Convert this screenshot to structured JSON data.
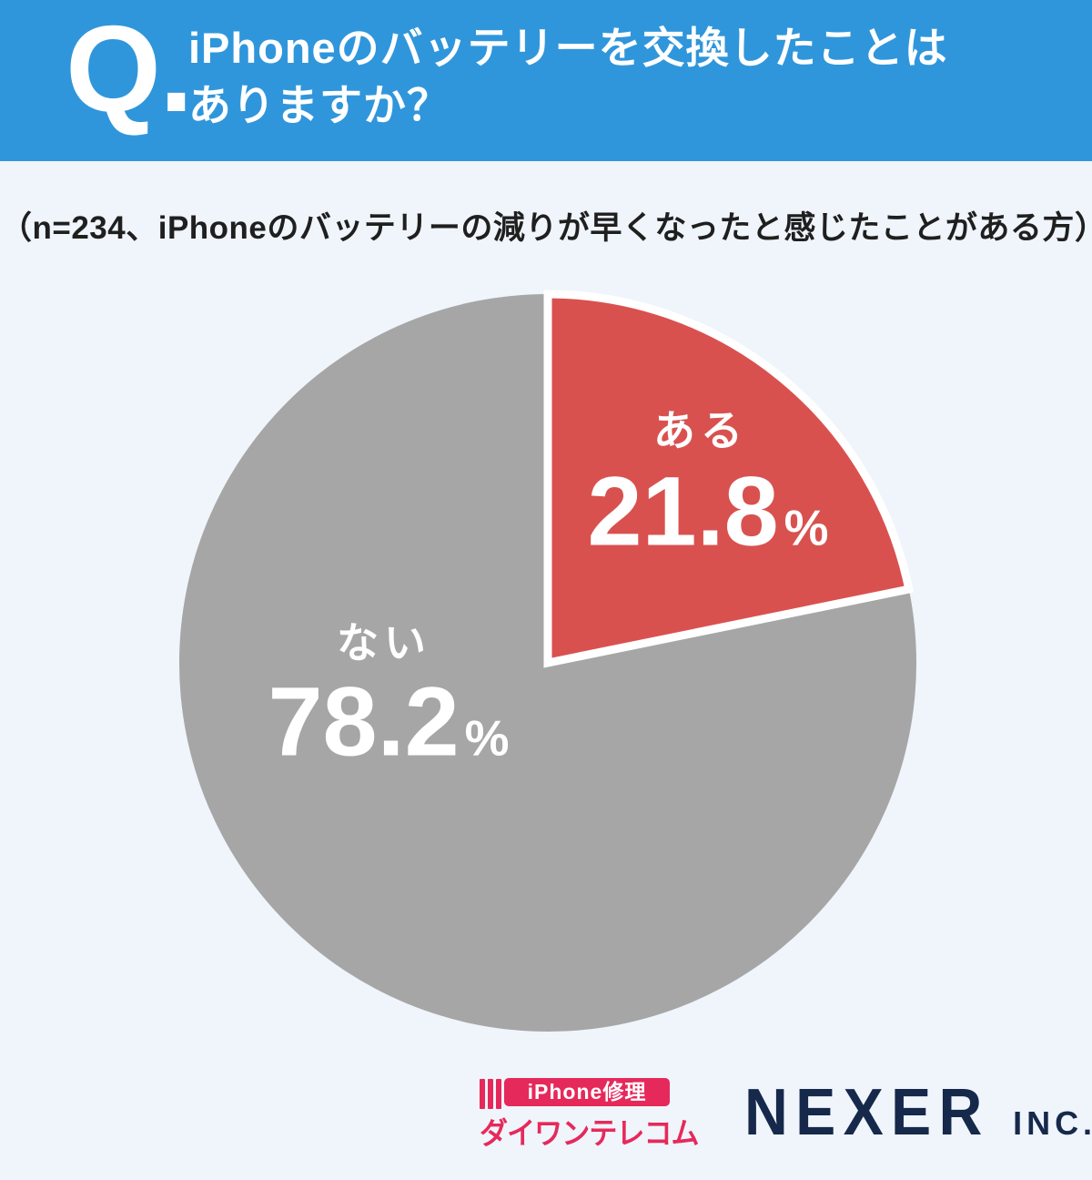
{
  "header": {
    "q_mark": "Q.",
    "title_line1": "iPhoneのバッテリーを交換したことは",
    "title_line2": "ありますか？"
  },
  "subtitle": "（n=234、iPhoneのバッテリーの減りが早くなったと感じたことがある方）",
  "chart_data": {
    "type": "pie",
    "title": "iPhoneのバッテリーを交換したことはありますか？",
    "sample_note": "n=234、iPhoneのバッテリーの減りが早くなったと感じたことがある方",
    "start_angle_deg": -90,
    "direction": "clockwise",
    "divider_color": "#FFFFFF",
    "label_color": "#FFFFFF",
    "slices": [
      {
        "label": "ある",
        "value": 21.8,
        "display": "21.8",
        "unit": "%",
        "color": "#D9514F"
      },
      {
        "label": "ない",
        "value": 78.2,
        "display": "78.2",
        "unit": "%",
        "color": "#A6A6A6"
      }
    ]
  },
  "footer": {
    "daiwan_logo": {
      "tagline": "iPhone修理",
      "name": "ダイワンテレコム",
      "color": "#E6295B"
    },
    "nexer_logo": {
      "name": "NEXER",
      "suffix": "INC.",
      "color": "#16294B"
    }
  },
  "colors": {
    "page_bg": "#EFF5FB",
    "header_bg": "#3096DB",
    "subtitle_text": "#1F1F1F"
  }
}
